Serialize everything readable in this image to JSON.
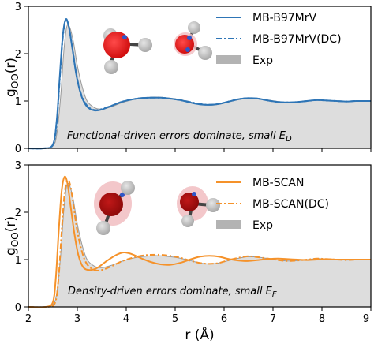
{
  "chart_data": [
    {
      "type": "line",
      "panel": "top",
      "ylabel": "g",
      "ylabel_sub": "OO",
      "ylabel_tail": "(r)",
      "xlim": [
        2,
        9
      ],
      "ylim": [
        0,
        3
      ],
      "yticks": [
        "0",
        "1",
        "2",
        "3"
      ],
      "annotation": {
        "text": "Functional-driven errors dominate, small E",
        "sub": "D"
      },
      "legend": [
        {
          "name": "MB-B97MrV",
          "style": "solid",
          "color": "#2e75b6"
        },
        {
          "name": "MB-B97MrV(DC)",
          "style": "dashed",
          "color": "#2e75b6"
        },
        {
          "name": "Exp",
          "style": "fill",
          "color": "#b3b3b3"
        }
      ],
      "legend_placement": "top-right",
      "series": [
        {
          "name": "Exp",
          "x": [
            2.0,
            2.3,
            2.5,
            2.58,
            2.66,
            2.72,
            2.78,
            2.84,
            2.92,
            3.0,
            3.1,
            3.2,
            3.35,
            3.5,
            3.7,
            3.9,
            4.1,
            4.3,
            4.5,
            4.7,
            4.9,
            5.1,
            5.3,
            5.5,
            5.7,
            5.9,
            6.1,
            6.3,
            6.5,
            6.7,
            6.9,
            7.1,
            7.3,
            7.5,
            7.7,
            7.9,
            8.1,
            8.3,
            8.5,
            8.7,
            9.0
          ],
          "y": [
            0.0,
            0.0,
            0.05,
            0.3,
            1.1,
            2.0,
            2.55,
            2.57,
            2.25,
            1.75,
            1.3,
            1.0,
            0.86,
            0.83,
            0.88,
            0.96,
            1.02,
            1.06,
            1.08,
            1.08,
            1.06,
            1.03,
            0.98,
            0.93,
            0.91,
            0.93,
            0.98,
            1.03,
            1.06,
            1.05,
            1.02,
            0.99,
            0.97,
            0.98,
            1.0,
            1.02,
            1.01,
            1.0,
            0.99,
            1.0,
            1.0
          ]
        },
        {
          "name": "MB-B97MrV",
          "x": [
            2.0,
            2.3,
            2.5,
            2.58,
            2.64,
            2.7,
            2.76,
            2.82,
            2.9,
            2.98,
            3.08,
            3.2,
            3.35,
            3.5,
            3.7,
            3.9,
            4.1,
            4.3,
            4.5,
            4.7,
            4.9,
            5.1,
            5.3,
            5.5,
            5.7,
            5.9,
            6.1,
            6.3,
            6.5,
            6.7,
            6.9,
            7.1,
            7.3,
            7.5,
            7.7,
            7.9,
            8.1,
            8.3,
            8.5,
            8.7,
            9.0
          ],
          "y": [
            0.0,
            0.0,
            0.08,
            0.6,
            1.5,
            2.35,
            2.72,
            2.6,
            2.1,
            1.55,
            1.12,
            0.88,
            0.8,
            0.82,
            0.9,
            0.98,
            1.03,
            1.06,
            1.07,
            1.07,
            1.05,
            1.02,
            0.97,
            0.93,
            0.92,
            0.94,
            0.99,
            1.04,
            1.06,
            1.05,
            1.01,
            0.98,
            0.97,
            0.98,
            1.0,
            1.02,
            1.01,
            1.0,
            0.99,
            1.0,
            1.0
          ]
        },
        {
          "name": "MB-B97MrV(DC)",
          "x": [
            2.0,
            2.3,
            2.5,
            2.58,
            2.64,
            2.7,
            2.76,
            2.82,
            2.9,
            2.98,
            3.08,
            3.2,
            3.35,
            3.5,
            3.7,
            3.9,
            4.1,
            4.3,
            4.5,
            4.7,
            4.9,
            5.1,
            5.3,
            5.5,
            5.7,
            5.9,
            6.1,
            6.3,
            6.5,
            6.7,
            6.9,
            7.1,
            7.3,
            7.5,
            7.7,
            7.9,
            8.1,
            8.3,
            8.5,
            8.7,
            9.0
          ],
          "y": [
            0.0,
            0.0,
            0.07,
            0.55,
            1.45,
            2.3,
            2.7,
            2.6,
            2.12,
            1.57,
            1.14,
            0.9,
            0.81,
            0.83,
            0.9,
            0.98,
            1.03,
            1.06,
            1.07,
            1.07,
            1.05,
            1.02,
            0.98,
            0.94,
            0.92,
            0.94,
            0.99,
            1.04,
            1.06,
            1.05,
            1.01,
            0.98,
            0.97,
            0.98,
            1.0,
            1.02,
            1.01,
            1.0,
            0.99,
            1.0,
            1.0
          ]
        }
      ]
    },
    {
      "type": "line",
      "panel": "bottom",
      "xlabel": "r (Å)",
      "ylabel": "g",
      "ylabel_sub": "OO",
      "ylabel_tail": "(r)",
      "xlim": [
        2,
        9
      ],
      "ylim": [
        0,
        3
      ],
      "xticks": [
        "2",
        "3",
        "4",
        "5",
        "6",
        "7",
        "8",
        "9"
      ],
      "yticks": [
        "0",
        "1",
        "2",
        "3"
      ],
      "annotation": {
        "text": "Density-driven errors dominate, small E",
        "sub": "F"
      },
      "legend": [
        {
          "name": "MB-SCAN",
          "style": "solid",
          "color": "#f5922a"
        },
        {
          "name": "MB-SCAN(DC)",
          "style": "dashed",
          "color": "#f5922a"
        },
        {
          "name": "Exp",
          "style": "fill",
          "color": "#b3b3b3"
        }
      ],
      "legend_placement": "top-right",
      "series": [
        {
          "name": "Exp",
          "x": [
            2.0,
            2.3,
            2.5,
            2.58,
            2.66,
            2.72,
            2.78,
            2.84,
            2.92,
            3.0,
            3.1,
            3.2,
            3.35,
            3.5,
            3.7,
            3.9,
            4.1,
            4.3,
            4.5,
            4.7,
            4.9,
            5.1,
            5.3,
            5.5,
            5.7,
            5.9,
            6.1,
            6.3,
            6.5,
            6.7,
            6.9,
            7.1,
            7.3,
            7.5,
            7.7,
            7.9,
            8.1,
            8.3,
            8.5,
            8.7,
            9.0
          ],
          "y": [
            0.0,
            0.0,
            0.05,
            0.3,
            1.1,
            2.0,
            2.55,
            2.57,
            2.25,
            1.75,
            1.3,
            1.0,
            0.86,
            0.83,
            0.88,
            0.96,
            1.02,
            1.06,
            1.08,
            1.08,
            1.06,
            1.03,
            0.98,
            0.93,
            0.91,
            0.93,
            0.98,
            1.03,
            1.06,
            1.05,
            1.02,
            0.99,
            0.97,
            0.98,
            1.0,
            1.02,
            1.01,
            1.0,
            0.99,
            1.0,
            1.0
          ]
        },
        {
          "name": "MB-SCAN",
          "x": [
            2.0,
            2.35,
            2.5,
            2.56,
            2.62,
            2.68,
            2.74,
            2.8,
            2.86,
            2.94,
            3.02,
            3.12,
            3.25,
            3.4,
            3.6,
            3.8,
            3.95,
            4.1,
            4.3,
            4.5,
            4.7,
            4.9,
            5.1,
            5.3,
            5.5,
            5.7,
            5.9,
            6.1,
            6.3,
            6.5,
            6.7,
            6.9,
            7.1,
            7.3,
            7.5,
            7.7,
            7.9,
            8.1,
            8.3,
            8.5,
            8.7,
            9.0
          ],
          "y": [
            0.0,
            0.0,
            0.1,
            0.6,
            1.6,
            2.45,
            2.75,
            2.6,
            2.15,
            1.55,
            1.1,
            0.84,
            0.78,
            0.82,
            0.97,
            1.1,
            1.15,
            1.12,
            1.03,
            0.95,
            0.9,
            0.89,
            0.93,
            1.0,
            1.06,
            1.08,
            1.06,
            1.01,
            0.98,
            0.97,
            0.99,
            1.01,
            1.02,
            1.01,
            1.0,
            0.99,
            1.0,
            1.01,
            1.0,
            1.0,
            1.0,
            1.0
          ]
        },
        {
          "name": "MB-SCAN(DC)",
          "x": [
            2.0,
            2.4,
            2.55,
            2.62,
            2.68,
            2.74,
            2.8,
            2.86,
            2.92,
            3.0,
            3.1,
            3.2,
            3.35,
            3.5,
            3.7,
            3.9,
            4.1,
            4.3,
            4.5,
            4.7,
            4.9,
            5.1,
            5.3,
            5.5,
            5.7,
            5.9,
            6.1,
            6.3,
            6.5,
            6.7,
            6.9,
            7.1,
            7.3,
            7.5,
            7.7,
            7.9,
            8.1,
            8.3,
            8.5,
            8.7,
            9.0
          ],
          "y": [
            0.0,
            0.0,
            0.1,
            0.65,
            1.6,
            2.4,
            2.68,
            2.55,
            2.15,
            1.6,
            1.15,
            0.9,
            0.78,
            0.78,
            0.86,
            0.96,
            1.03,
            1.08,
            1.1,
            1.1,
            1.08,
            1.04,
            0.98,
            0.93,
            0.91,
            0.93,
            0.99,
            1.04,
            1.07,
            1.05,
            1.02,
            0.99,
            0.97,
            0.98,
            1.0,
            1.02,
            1.01,
            1.0,
            0.99,
            1.0,
            1.0
          ]
        }
      ]
    }
  ]
}
